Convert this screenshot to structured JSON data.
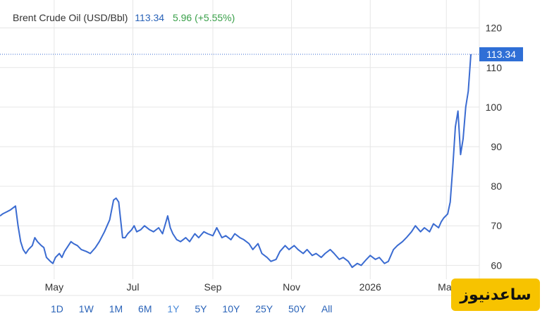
{
  "header": {
    "name": "Brent Crude Oil (USD/Bbl)",
    "price": "113.34",
    "change": "5.96 (+5.55%)"
  },
  "range_buttons": [
    "1D",
    "1W",
    "1M",
    "6M",
    "1Y",
    "5Y",
    "10Y",
    "25Y",
    "50Y",
    "All"
  ],
  "active_range": "1Y",
  "watermark": "ساعدنیوز",
  "colors": {
    "line": "#3a6bd1",
    "badge": "#2f6fd6",
    "change": "#3aa04a",
    "grid": "#e6e6e6"
  },
  "chart_data": {
    "type": "line",
    "title": "Brent Crude Oil (USD/Bbl)",
    "xlabel": "",
    "ylabel": "",
    "ylim": [
      56.5,
      123.5
    ],
    "x_range": [
      "2025-03-20",
      "2026-03-20"
    ],
    "y_ticks": [
      60,
      70,
      80,
      90,
      100,
      110,
      120
    ],
    "x_ticks": [
      {
        "label": "May",
        "date": "2025-05-01"
      },
      {
        "label": "Jul",
        "date": "2025-07-01"
      },
      {
        "label": "Sep",
        "date": "2025-09-01"
      },
      {
        "label": "Nov",
        "date": "2025-11-01"
      },
      {
        "label": "2026",
        "date": "2026-01-01"
      },
      {
        "label": "Mar",
        "date": "2026-03-01"
      }
    ],
    "last_value": 113.34,
    "last_value_label": "113.34",
    "grid": true,
    "series": [
      {
        "x": [
          "2025-03-20",
          "2025-03-22",
          "2025-03-25",
          "2025-03-28",
          "2025-04-01",
          "2025-04-03",
          "2025-04-05",
          "2025-04-07",
          "2025-04-09",
          "2025-04-11",
          "2025-04-14",
          "2025-04-16",
          "2025-04-18",
          "2025-04-21",
          "2025-04-23",
          "2025-04-25",
          "2025-04-28",
          "2025-04-30",
          "2025-05-02",
          "2025-05-05",
          "2025-05-07",
          "2025-05-09",
          "2025-05-12",
          "2025-05-14",
          "2025-05-16",
          "2025-05-19",
          "2025-05-22",
          "2025-05-26",
          "2025-05-29",
          "2025-06-02",
          "2025-06-05",
          "2025-06-09",
          "2025-06-11",
          "2025-06-13",
          "2025-06-16",
          "2025-06-18",
          "2025-06-20",
          "2025-06-23",
          "2025-06-25",
          "2025-06-27",
          "2025-06-30",
          "2025-07-02",
          "2025-07-04",
          "2025-07-07",
          "2025-07-10",
          "2025-07-14",
          "2025-07-17",
          "2025-07-21",
          "2025-07-24",
          "2025-07-28",
          "2025-07-30",
          "2025-08-01",
          "2025-08-04",
          "2025-08-07",
          "2025-08-11",
          "2025-08-14",
          "2025-08-18",
          "2025-08-21",
          "2025-08-25",
          "2025-08-28",
          "2025-09-01",
          "2025-09-04",
          "2025-09-08",
          "2025-09-11",
          "2025-09-15",
          "2025-09-18",
          "2025-09-22",
          "2025-09-25",
          "2025-09-29",
          "2025-10-02",
          "2025-10-06",
          "2025-10-09",
          "2025-10-13",
          "2025-10-16",
          "2025-10-20",
          "2025-10-23",
          "2025-10-27",
          "2025-10-30",
          "2025-11-03",
          "2025-11-06",
          "2025-11-10",
          "2025-11-13",
          "2025-11-17",
          "2025-11-20",
          "2025-11-24",
          "2025-11-27",
          "2025-12-01",
          "2025-12-04",
          "2025-12-08",
          "2025-12-11",
          "2025-12-15",
          "2025-12-18",
          "2025-12-22",
          "2025-12-25",
          "2025-12-29",
          "2026-01-01",
          "2026-01-05",
          "2026-01-08",
          "2026-01-12",
          "2026-01-15",
          "2026-01-19",
          "2026-01-22",
          "2026-01-26",
          "2026-01-29",
          "2026-02-02",
          "2026-02-05",
          "2026-02-09",
          "2026-02-12",
          "2026-02-16",
          "2026-02-19",
          "2026-02-23",
          "2026-02-25",
          "2026-02-27",
          "2026-03-02",
          "2026-03-04",
          "2026-03-06",
          "2026-03-08",
          "2026-03-10",
          "2026-03-12",
          "2026-03-14",
          "2026-03-16",
          "2026-03-18",
          "2026-03-20"
        ],
        "values": [
          72.5,
          73.0,
          73.5,
          74.0,
          75.0,
          70.0,
          66.0,
          64.0,
          63.0,
          64.0,
          65.0,
          67.0,
          66.0,
          65.0,
          64.5,
          62.0,
          61.0,
          60.5,
          62.0,
          63.0,
          62.0,
          63.5,
          65.0,
          66.0,
          65.5,
          65.0,
          64.0,
          63.5,
          63.0,
          64.5,
          66.0,
          68.5,
          70.0,
          71.5,
          76.5,
          77.0,
          76.0,
          67.0,
          67.0,
          68.0,
          69.0,
          70.0,
          68.5,
          69.0,
          70.0,
          69.0,
          68.5,
          69.5,
          68.0,
          72.5,
          69.5,
          68.0,
          66.5,
          66.0,
          67.0,
          66.0,
          68.0,
          67.0,
          68.5,
          68.0,
          67.5,
          69.5,
          67.0,
          67.5,
          66.5,
          68.0,
          67.0,
          66.5,
          65.5,
          64.0,
          65.5,
          63.0,
          62.0,
          61.0,
          61.5,
          63.5,
          65.0,
          64.0,
          65.0,
          64.0,
          63.0,
          64.0,
          62.5,
          63.0,
          62.0,
          63.0,
          64.0,
          63.0,
          61.5,
          62.0,
          61.0,
          59.5,
          60.5,
          60.0,
          61.5,
          62.5,
          61.5,
          62.0,
          60.5,
          61.0,
          64.0,
          65.0,
          66.0,
          67.0,
          68.5,
          70.0,
          68.5,
          69.5,
          68.5,
          70.5,
          69.5,
          71.0,
          72.0,
          73.0,
          76.0,
          85.0,
          95.0,
          99.0,
          88.0,
          92.0,
          100.0,
          104.0,
          113.34
        ]
      }
    ]
  }
}
